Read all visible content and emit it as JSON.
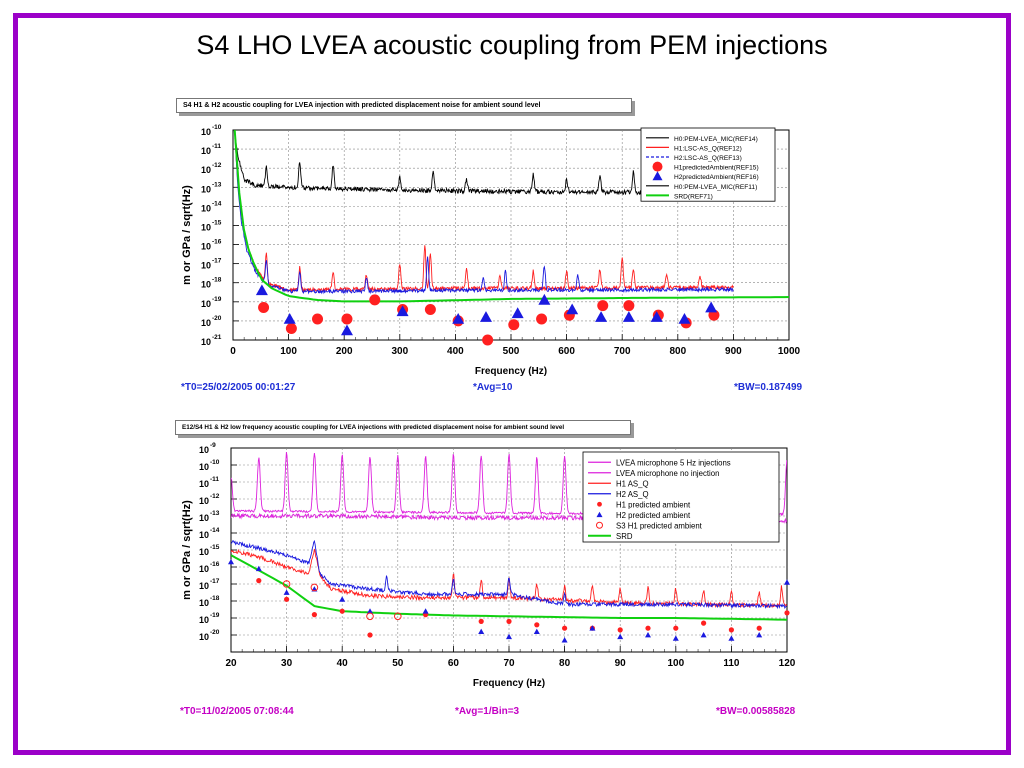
{
  "slide": {
    "title": "S4 LHO LVEA acoustic coupling from PEM injections",
    "border_color": "#9b00c8"
  },
  "colors": {
    "black": "#000000",
    "red": "#ff2020",
    "blue": "#1a1adf",
    "green": "#10d010",
    "magenta": "#dd22dd",
    "footer_blue": "#1f2fd6",
    "footer_magenta": "#c400c4"
  },
  "chart_data": [
    {
      "type": "line",
      "panel_title": "S4 H1 & H2 acoustic coupling for LVEA injection with predicted displacement noise for ambient sound level",
      "xlabel": "Frequency (Hz)",
      "ylabel": "m or GPa / sqrt(Hz)",
      "xlim": [
        0,
        1000
      ],
      "ylim_log10": [
        -21,
        -10
      ],
      "x_ticks": [
        "0",
        "100",
        "200",
        "300",
        "400",
        "500",
        "600",
        "700",
        "800",
        "900",
        "1000"
      ],
      "y_tick_exponents": [
        "-10",
        "-11",
        "-12",
        "-13",
        "-14",
        "-15",
        "-16",
        "-17",
        "-18",
        "-19",
        "-20",
        "-21"
      ],
      "grid": true,
      "legend_position": "top-right",
      "legend": [
        {
          "label": "H0:PEM-LVEA_MIC(REF14)",
          "style": "line",
          "color": "#000000"
        },
        {
          "label": "H1:LSC-AS_Q(REF12)",
          "style": "line",
          "color": "#ff2020"
        },
        {
          "label": "H2:LSC-AS_Q(REF13)",
          "style": "dashed",
          "color": "#1a1adf"
        },
        {
          "label": "H1predictedAmbient(REF15)",
          "style": "circle",
          "color": "#ff2020"
        },
        {
          "label": "H2predictedAmbient(REF16)",
          "style": "triangle",
          "color": "#1a1adf"
        },
        {
          "label": "H0:PEM-LVEA_MIC(REF11)",
          "style": "line",
          "color": "#000000"
        },
        {
          "label": "SRD(REF71)",
          "style": "line",
          "color": "#10d010"
        }
      ],
      "series": [
        {
          "name": "H0:PEM-LVEA_MIC(REF14)",
          "kind": "noisy",
          "color": "#000000",
          "x": [
            3,
            10,
            20,
            40,
            100,
            300,
            600,
            900
          ],
          "y": [
            -10.3,
            -11.5,
            -12.6,
            -12.9,
            -13.0,
            -13.15,
            -13.25,
            -13.3
          ],
          "noise": 0.12,
          "peaks": [
            [
              60,
              1.0
            ],
            [
              120,
              1.4
            ],
            [
              180,
              1.2
            ],
            [
              300,
              0.7
            ],
            [
              360,
              1.0
            ],
            [
              420,
              0.6
            ],
            [
              540,
              0.9
            ],
            [
              600,
              0.7
            ],
            [
              660,
              0.8
            ],
            [
              720,
              1.1
            ],
            [
              780,
              0.5
            ]
          ]
        },
        {
          "name": "H1:LSC-AS_Q(REF12)",
          "kind": "noisy",
          "color": "#ff2020",
          "x": [
            3,
            8,
            15,
            25,
            40,
            60,
            100,
            200,
            400,
            900
          ],
          "y": [
            -10.0,
            -12.5,
            -14.5,
            -16.0,
            -17.2,
            -18.0,
            -18.4,
            -18.35,
            -18.3,
            -18.25
          ],
          "noise": 0.1,
          "peaks": [
            [
              60,
              1.5
            ],
            [
              120,
              1.2
            ],
            [
              180,
              0.9
            ],
            [
              240,
              0.8
            ],
            [
              300,
              1.3
            ],
            [
              345,
              2.3
            ],
            [
              355,
              1.9
            ],
            [
              420,
              1.1
            ],
            [
              480,
              0.6
            ],
            [
              540,
              0.9
            ],
            [
              600,
              0.9
            ],
            [
              660,
              1.0
            ],
            [
              700,
              1.6
            ],
            [
              720,
              1.0
            ],
            [
              780,
              0.7
            ],
            [
              840,
              0.6
            ]
          ]
        },
        {
          "name": "H2:LSC-AS_Q(REF13)",
          "kind": "noisy",
          "color": "#1a1adf",
          "x": [
            3,
            8,
            15,
            25,
            40,
            60,
            100,
            200,
            400,
            900
          ],
          "y": [
            -10.0,
            -12.7,
            -14.8,
            -16.3,
            -17.4,
            -18.1,
            -18.45,
            -18.45,
            -18.4,
            -18.35
          ],
          "noise": 0.09,
          "peaks": [
            [
              60,
              1.2
            ],
            [
              120,
              1.0
            ],
            [
              240,
              0.7
            ],
            [
              350,
              1.8
            ],
            [
              450,
              0.7
            ],
            [
              490,
              1.0
            ],
            [
              560,
              1.3
            ],
            [
              620,
              0.8
            ]
          ]
        },
        {
          "name": "SRD(REF71)",
          "kind": "smooth",
          "color": "#10d010",
          "x": [
            3,
            10,
            20,
            30,
            50,
            70,
            100,
            150,
            200,
            300,
            500,
            700,
            1000
          ],
          "y": [
            -10.0,
            -13.0,
            -15.3,
            -16.5,
            -17.8,
            -18.3,
            -18.7,
            -18.9,
            -18.98,
            -18.98,
            -18.85,
            -18.8,
            -18.75
          ]
        }
      ],
      "markers": {
        "H1predictedAmbient(REF15)": {
          "shape": "circle",
          "color": "#ff2020",
          "x": [
            55,
            105,
            152,
            205,
            255,
            305,
            355,
            405,
            458,
            505,
            555,
            605,
            665,
            712,
            765,
            815,
            865
          ],
          "y": [
            -19.3,
            -20.4,
            -19.9,
            -19.9,
            -18.9,
            -19.4,
            -19.4,
            -20.0,
            -21.0,
            -20.2,
            -19.9,
            -19.7,
            -19.2,
            -19.2,
            -19.7,
            -20.1,
            -19.7
          ]
        },
        "H2predictedAmbient(REF16)": {
          "shape": "triangle",
          "color": "#1a1adf",
          "x": [
            52,
            102,
            205,
            305,
            405,
            455,
            512,
            560,
            610,
            662,
            712,
            762,
            812,
            860
          ],
          "y": [
            -18.4,
            -19.9,
            -20.5,
            -19.5,
            -19.9,
            -19.8,
            -19.6,
            -18.9,
            -19.4,
            -19.8,
            -19.8,
            -19.8,
            -19.9,
            -19.3
          ]
        }
      },
      "footer": {
        "t0": "*T0=25/02/2005 00:01:27",
        "avg": "*Avg=10",
        "bw": "*BW=0.187499"
      }
    },
    {
      "type": "line",
      "panel_title": "E12/S4 H1 & H2 low frequency acoustic coupling for LVEA injections with predicted displacement noise for ambient sound level",
      "xlabel": "Frequency (Hz)",
      "ylabel": "m or GPa / sqrt(Hz)",
      "xlim": [
        20,
        120
      ],
      "ylim_log10": [
        -21,
        -9
      ],
      "x_ticks": [
        "20",
        "30",
        "40",
        "50",
        "60",
        "70",
        "80",
        "90",
        "100",
        "110",
        "120"
      ],
      "y_tick_exponents": [
        "-9",
        "-10",
        "-11",
        "-12",
        "-13",
        "-14",
        "-15",
        "-16",
        "-17",
        "-18",
        "-19",
        "-20"
      ],
      "grid": true,
      "legend_position": "top-right",
      "legend": [
        {
          "label": "LVEA microphone 5 Hz injections",
          "style": "line",
          "color": "#dd22dd"
        },
        {
          "label": "LVEA microphone no injection",
          "style": "line",
          "color": "#dd22dd"
        },
        {
          "label": "H1 AS_Q",
          "style": "line",
          "color": "#ff2020"
        },
        {
          "label": "H2 AS_Q",
          "style": "line",
          "color": "#1a1adf"
        },
        {
          "label": "H1 predicted ambient",
          "style": "dot",
          "color": "#ff2020"
        },
        {
          "label": "H2 predicted ambient",
          "style": "triangle",
          "color": "#1a1adf"
        },
        {
          "label": "S3 H1 predicted ambient",
          "style": "open-circle",
          "color": "#ff2020"
        },
        {
          "label": "SRD",
          "style": "line",
          "color": "#10d010"
        }
      ],
      "series": [
        {
          "name": "LVEA microphone 5 Hz injections",
          "kind": "noisy",
          "color": "#dd22dd",
          "x": [
            20,
            40,
            60,
            80,
            100,
            120
          ],
          "y": [
            -12.7,
            -12.75,
            -12.8,
            -12.85,
            -12.85,
            -12.9
          ],
          "noise": 0.06,
          "peaks": [
            [
              20,
              2.0
            ],
            [
              25,
              3.2
            ],
            [
              30,
              3.5
            ],
            [
              35,
              3.5
            ],
            [
              40,
              3.4
            ],
            [
              45,
              3.3
            ],
            [
              50,
              3.4
            ],
            [
              55,
              3.3
            ],
            [
              60,
              3.5
            ],
            [
              65,
              3.4
            ],
            [
              70,
              3.5
            ],
            [
              75,
              3.3
            ],
            [
              80,
              3.4
            ],
            [
              85,
              3.3
            ],
            [
              90,
              3.4
            ],
            [
              95,
              3.3
            ],
            [
              100,
              3.3
            ],
            [
              105,
              3.3
            ],
            [
              110,
              3.4
            ],
            [
              115,
              3.2
            ],
            [
              120,
              3.2
            ]
          ],
          "peak_width": 0.35
        },
        {
          "name": "LVEA microphone no injection",
          "kind": "noisy",
          "color": "#dd22dd",
          "x": [
            20,
            40,
            60,
            80,
            100,
            120
          ],
          "y": [
            -13.0,
            -13.0,
            -13.1,
            -13.1,
            -13.2,
            -13.3
          ],
          "noise": 0.12,
          "peaks": []
        },
        {
          "name": "H1 AS_Q",
          "kind": "noisy",
          "color": "#ff2020",
          "x": [
            20,
            25,
            30,
            34,
            35,
            36,
            38,
            45,
            55,
            70,
            90,
            120
          ],
          "y": [
            -15.0,
            -15.4,
            -16.0,
            -16.4,
            -15.0,
            -16.5,
            -17.3,
            -17.7,
            -17.8,
            -17.8,
            -18.1,
            -18.3
          ],
          "noise": 0.12,
          "peaks": [
            [
              60,
              1.5
            ],
            [
              65,
              1.1
            ],
            [
              70,
              1.1
            ],
            [
              75,
              0.9
            ],
            [
              80,
              0.8
            ],
            [
              85,
              1.0
            ],
            [
              90,
              0.8
            ],
            [
              95,
              0.9
            ],
            [
              100,
              0.9
            ],
            [
              105,
              0.8
            ],
            [
              110,
              0.8
            ],
            [
              115,
              0.8
            ],
            [
              119,
              1.1
            ]
          ]
        },
        {
          "name": "H2 AS_Q",
          "kind": "noisy",
          "color": "#1a1adf",
          "x": [
            20,
            25,
            30,
            34,
            35,
            36,
            38,
            45,
            55,
            70,
            80,
            100,
            120
          ],
          "y": [
            -14.5,
            -14.9,
            -15.3,
            -15.8,
            -14.5,
            -16.4,
            -17.0,
            -17.3,
            -17.6,
            -17.6,
            -18.2,
            -18.2,
            -18.3
          ],
          "noise": 0.11,
          "peaks": [
            [
              48,
              0.8
            ],
            [
              60,
              0.9
            ],
            [
              70,
              1.0
            ],
            [
              80,
              0.6
            ]
          ]
        },
        {
          "name": "SRD",
          "kind": "smooth",
          "color": "#10d010",
          "x": [
            20,
            25,
            30,
            35,
            40,
            50,
            60,
            70,
            80,
            90,
            100,
            110,
            120
          ],
          "y": [
            -15.3,
            -16.2,
            -17.1,
            -18.3,
            -18.6,
            -18.75,
            -18.85,
            -18.9,
            -18.95,
            -19.0,
            -19.0,
            -19.05,
            -19.1
          ]
        }
      ],
      "markers": {
        "H1 predicted ambient": {
          "shape": "dot",
          "color": "#ff2020",
          "x": [
            25,
            30,
            35,
            40,
            45,
            55,
            65,
            70,
            75,
            80,
            85,
            90,
            95,
            100,
            105,
            110,
            115,
            120
          ],
          "y": [
            -16.8,
            -17.9,
            -18.8,
            -18.6,
            -20.0,
            -18.8,
            -19.2,
            -19.2,
            -19.4,
            -19.6,
            -19.6,
            -19.7,
            -19.6,
            -19.6,
            -19.3,
            -19.7,
            -19.6,
            -18.7
          ]
        },
        "H2 predicted ambient": {
          "shape": "triangle",
          "color": "#1a1adf",
          "x": [
            20,
            25,
            30,
            35,
            40,
            45,
            55,
            65,
            70,
            75,
            80,
            85,
            90,
            95,
            100,
            105,
            110,
            115,
            120
          ],
          "y": [
            -15.7,
            -16.1,
            -17.5,
            -17.3,
            -17.9,
            -18.6,
            -18.6,
            -19.8,
            -20.1,
            -19.8,
            -20.3,
            -19.6,
            -20.1,
            -20.0,
            -20.2,
            -20.0,
            -20.2,
            -20.0,
            -16.9
          ]
        },
        "S3 H1 predicted ambient": {
          "shape": "open-circle",
          "color": "#ff2020",
          "x": [
            30,
            35,
            45,
            50
          ],
          "y": [
            -17.0,
            -17.2,
            -18.9,
            -18.9
          ]
        }
      },
      "footer": {
        "t0": "*T0=11/02/2005 07:08:44",
        "avg": "*Avg=1/Bin=3",
        "bw": "*BW=0.00585828"
      }
    }
  ]
}
